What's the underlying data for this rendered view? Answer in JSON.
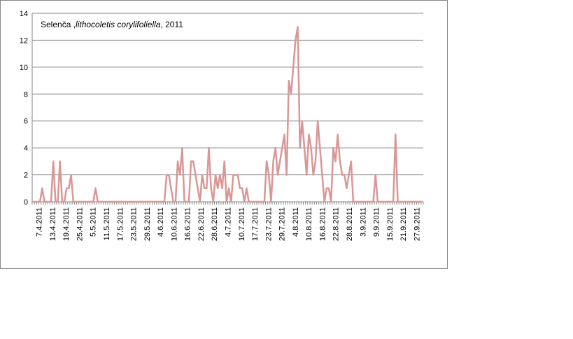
{
  "chart_data": {
    "type": "line",
    "title": {
      "prefix": "Selenča ,",
      "species": "lithocoletis corylifoliella",
      "suffix": ", 2011"
    },
    "xlabel": "",
    "ylabel": "",
    "ylim": [
      0,
      14
    ],
    "yticks": [
      0,
      2,
      4,
      6,
      8,
      10,
      12,
      14
    ],
    "grid": true,
    "legend": "none",
    "line_color": "#d99795",
    "x_tick_labels": [
      "7.4.2011",
      "13.4.2011",
      "19.4.2011",
      "25.4.2011",
      "5.5.2011",
      "11.5.2011",
      "17.5.2011",
      "23.5.2011",
      "29.5.2011",
      "4.6.2011",
      "10.6.2011",
      "16.6.2011",
      "22.6.2011",
      "28.6.2011",
      "4.7.2011",
      "10.7.2011",
      "17.7.2011",
      "23.7.2011",
      "29.7.2011",
      "4.8.2011",
      "10.8.2011",
      "16.8.2011",
      "22.8.2011",
      "28.8.2011",
      "3.9.2011",
      "9.9.2011",
      "15.9.2011",
      "21.9.2011",
      "27.9.2011"
    ],
    "series": [
      {
        "values": [
          0,
          0,
          0,
          0,
          1,
          0,
          0,
          0,
          0,
          3,
          0,
          0,
          3,
          0,
          0,
          1,
          1,
          2,
          0,
          0,
          0,
          0,
          0,
          0,
          0,
          0,
          0,
          0,
          1,
          0,
          0,
          0,
          0,
          0,
          0,
          0,
          0,
          0,
          0,
          0,
          0,
          0,
          0,
          0,
          0,
          0,
          0,
          0,
          0,
          0,
          0,
          0,
          0,
          0,
          0,
          0,
          0,
          0,
          0,
          0,
          2,
          2,
          1,
          0,
          0,
          3,
          2,
          4,
          0,
          0,
          0,
          3,
          3,
          2,
          1,
          0,
          2,
          1,
          1,
          4,
          1,
          0,
          2,
          1,
          2,
          1,
          3,
          0,
          1,
          0,
          2,
          2,
          2,
          1,
          1,
          0,
          1,
          0,
          0,
          0,
          0,
          0,
          0,
          0,
          0,
          3,
          2,
          0,
          3,
          4,
          2,
          3,
          4,
          5,
          2,
          9,
          8,
          10,
          12,
          13,
          4,
          6,
          4,
          2,
          5,
          4,
          2,
          3,
          6,
          4,
          2,
          0,
          1,
          1,
          0,
          4,
          3,
          5,
          3,
          2,
          2,
          1,
          2,
          3,
          0,
          0,
          0,
          0,
          0,
          0,
          0,
          0,
          0,
          0,
          2,
          0,
          0,
          0,
          0,
          0,
          0,
          0,
          0,
          5,
          0,
          0,
          0,
          0,
          0,
          0,
          0,
          0,
          0,
          0,
          0,
          0
        ]
      }
    ]
  }
}
